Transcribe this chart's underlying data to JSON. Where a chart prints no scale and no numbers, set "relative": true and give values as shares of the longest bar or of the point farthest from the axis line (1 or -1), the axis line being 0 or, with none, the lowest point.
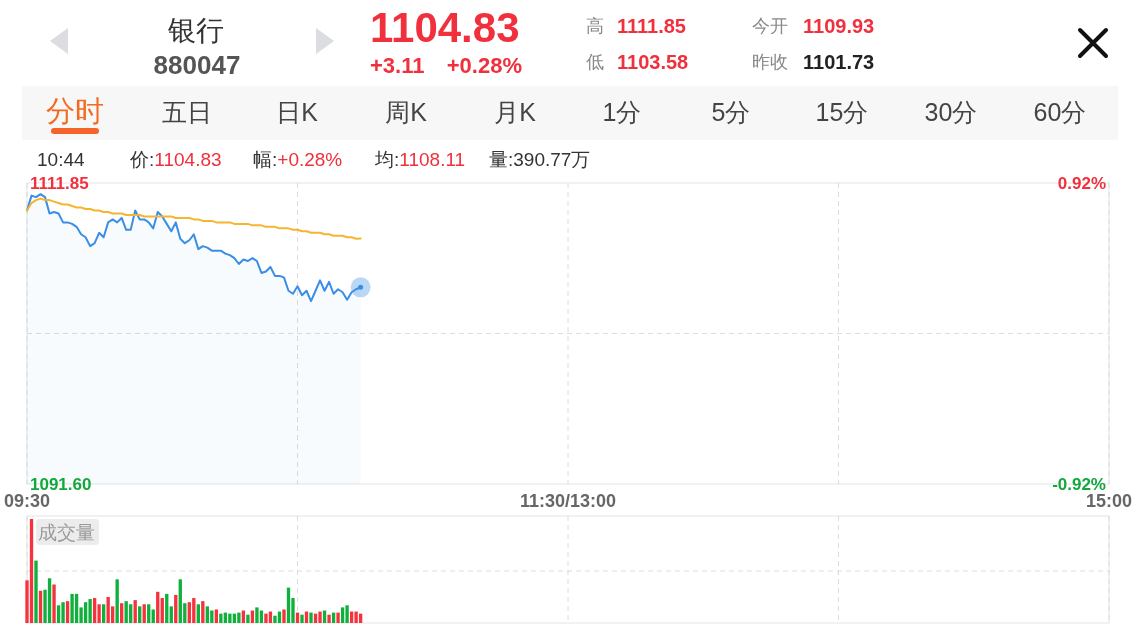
{
  "chart_data": [
    {
      "type": "other",
      "title": "银行",
      "subtitle": "880047",
      "annotations": [
        "1104.83",
        "+3.11",
        "+0.28%",
        "高",
        "1111.85",
        "今开",
        "1109.93",
        "低",
        "1103.58",
        "昨收",
        "1101.73",
        "分时",
        "五日",
        "日K",
        "周K",
        "月K",
        "1分",
        "5分",
        "15分",
        "30分",
        "60分",
        "10:44",
        "价:",
        "1104.83",
        "幅:",
        "+0.28%",
        "均:",
        "1108.11",
        "量:",
        "390.77万"
      ]
    },
    {
      "type": "line",
      "categories": [
        "09:30",
        null,
        null,
        null,
        null,
        null,
        null,
        null,
        null,
        null,
        null,
        null,
        null,
        null,
        null,
        null,
        null,
        null,
        null,
        null,
        null,
        null,
        null,
        null,
        null,
        null,
        null,
        null,
        null,
        null,
        null,
        null,
        null,
        null,
        null,
        null,
        null,
        null,
        null,
        null,
        null,
        null,
        null,
        null,
        null,
        null,
        null,
        null,
        null,
        null,
        null,
        null,
        null,
        null,
        null,
        null,
        null,
        null,
        null,
        null,
        null,
        null,
        null,
        null,
        null,
        null,
        null,
        null,
        null,
        null,
        null,
        null,
        null,
        null,
        null,
        null,
        null,
        null,
        null,
        null,
        null,
        null,
        null,
        null,
        null,
        null,
        null,
        null,
        null,
        null,
        null,
        null,
        null,
        null,
        null,
        null,
        null,
        null,
        null,
        null,
        null,
        null,
        null,
        null,
        null,
        null,
        null,
        null,
        null,
        null,
        null,
        null,
        null,
        null,
        null,
        null,
        null,
        null,
        null,
        null,
        "11:30/13:00",
        null,
        null,
        null,
        null,
        null,
        null,
        null,
        null,
        null,
        null,
        null,
        null,
        null,
        null,
        null,
        null,
        null,
        null,
        null,
        null,
        null,
        null,
        null,
        null,
        null,
        null,
        null,
        null,
        null,
        null,
        null,
        null,
        null,
        null,
        null,
        null,
        null,
        null,
        null,
        null,
        null,
        null,
        null,
        null,
        null,
        null,
        null,
        null,
        null,
        null,
        null,
        null,
        null,
        null,
        null,
        null,
        null,
        null,
        null,
        null,
        null,
        null,
        null,
        null,
        null,
        null,
        null,
        null,
        null,
        null,
        null,
        null,
        null,
        null,
        null,
        null,
        null,
        null,
        null,
        null,
        null,
        null,
        null,
        null,
        null,
        null,
        null,
        null,
        null,
        null,
        null,
        null,
        null,
        null,
        null,
        null,
        null,
        null,
        null,
        null,
        null,
        null,
        null,
        null,
        null,
        null,
        null,
        null,
        null,
        null,
        null,
        null,
        null,
        null,
        null,
        null,
        null,
        null,
        null,
        "15:00"
      ],
      "series": [
        {
          "type": "area",
          "color": "#3a8ee6",
          "values": [
            1110.0,
            1111.0,
            1110.9,
            1111.1,
            1110.9,
            1109.8,
            1109.9,
            1109.8,
            1109.2,
            1109.2,
            1109.1,
            1108.9,
            1108.4,
            1108.2,
            1107.6,
            1107.8,
            1108.5,
            1108.2,
            1109.2,
            1109.4,
            1109.2,
            1109.5,
            1108.7,
            1108.7,
            1110.0,
            1109.4,
            1109.4,
            1109.2,
            1108.8,
            1109.9,
            1109.6,
            1109.1,
            1108.6,
            1109.2,
            1108.1,
            1107.8,
            1108.0,
            1108.4,
            1107.4,
            1107.6,
            1107.5,
            1107.3,
            1107.3,
            1107.3,
            1107.1,
            1107.0,
            1106.8,
            1106.4,
            1106.7,
            1106.6,
            1106.8,
            1106.6,
            1105.8,
            1105.9,
            1106.2,
            1105.6,
            1105.6,
            1105.5,
            1104.6,
            1104.4,
            1104.9,
            1104.3,
            1104.6,
            1103.9,
            1104.6,
            1105.3,
            1104.6,
            1105.2,
            1104.4,
            1104.7,
            1104.5,
            1104.0,
            1104.5,
            1104.7,
            1104.83,
            null,
            null,
            null,
            null,
            null,
            null,
            null,
            null,
            null,
            null,
            null,
            null,
            null,
            null,
            null,
            null,
            null,
            null,
            null,
            null,
            null,
            null,
            null,
            null,
            null,
            null,
            null,
            null,
            null,
            null,
            null,
            null,
            null,
            null,
            null,
            null,
            null,
            null,
            null,
            null,
            null,
            null,
            null,
            null,
            null,
            null,
            null,
            null,
            null,
            null,
            null,
            null,
            null,
            null,
            null,
            null,
            null,
            null,
            null,
            null,
            null,
            null,
            null,
            null,
            null,
            null,
            null,
            null,
            null,
            null,
            null,
            null,
            null,
            null,
            null,
            null,
            null,
            null,
            null,
            null,
            null,
            null,
            null,
            null,
            null,
            null,
            null,
            null,
            null,
            null,
            null,
            null,
            null,
            null,
            null,
            null,
            null,
            null,
            null,
            null,
            null,
            null,
            null,
            null,
            null,
            null,
            null,
            null,
            null,
            null,
            null,
            null,
            null,
            null,
            null,
            null,
            null,
            null,
            null,
            null,
            null,
            null,
            null,
            null,
            null,
            null,
            null,
            null,
            null,
            null,
            null,
            null,
            null,
            null,
            null,
            null,
            null,
            null,
            null,
            null,
            null,
            null,
            null,
            null,
            null,
            null,
            null,
            null,
            null,
            null,
            null,
            null,
            null,
            null,
            null,
            null,
            null,
            null,
            null,
            null,
            null,
            null,
            null,
            null,
            null,
            null
          ]
        },
        {
          "color": "#f5b530",
          "values": [
            1110.0,
            1110.5,
            1110.7,
            1110.8,
            1110.7,
            1110.7,
            1110.6,
            1110.5,
            1110.4,
            1110.4,
            1110.3,
            1110.2,
            1110.2,
            1110.1,
            1110.1,
            1110.0,
            1110.0,
            1109.9,
            1109.9,
            1109.8,
            1109.8,
            1109.8,
            1109.7,
            1109.7,
            1109.7,
            1109.7,
            1109.6,
            1109.6,
            1109.6,
            1109.6,
            1109.6,
            1109.6,
            1109.6,
            1109.5,
            1109.5,
            1109.5,
            1109.5,
            1109.4,
            1109.4,
            1109.3,
            1109.3,
            1109.3,
            1109.2,
            1109.2,
            1109.2,
            1109.2,
            1109.1,
            1109.1,
            1109.1,
            1109.1,
            1109.0,
            1109.0,
            1109.0,
            1108.9,
            1108.9,
            1108.9,
            1108.8,
            1108.8,
            1108.8,
            1108.7,
            1108.7,
            1108.6,
            1108.6,
            1108.5,
            1108.5,
            1108.5,
            1108.4,
            1108.4,
            1108.3,
            1108.3,
            1108.3,
            1108.2,
            1108.2,
            1108.1,
            1108.11,
            null,
            null,
            null,
            null,
            null,
            null,
            null,
            null,
            null,
            null,
            null,
            null,
            null,
            null,
            null,
            null,
            null,
            null,
            null,
            null,
            null,
            null,
            null,
            null,
            null,
            null,
            null,
            null,
            null,
            null,
            null,
            null,
            null,
            null,
            null,
            null,
            null,
            null,
            null,
            null,
            null,
            null,
            null,
            null,
            null,
            null,
            null,
            null,
            null,
            null,
            null,
            null,
            null,
            null,
            null,
            null,
            null,
            null,
            null,
            null,
            null,
            null,
            null,
            null,
            null,
            null,
            null,
            null,
            null,
            null,
            null,
            null,
            null,
            null,
            null,
            null,
            null,
            null,
            null,
            null,
            null,
            null,
            null,
            null,
            null,
            null,
            null,
            null,
            null,
            null,
            null,
            null,
            null,
            null,
            null,
            null,
            null,
            null,
            null,
            null,
            null,
            null,
            null,
            null,
            null,
            null,
            null,
            null,
            null,
            null,
            null,
            null,
            null,
            null,
            null,
            null,
            null,
            null,
            null,
            null,
            null,
            null,
            null,
            null,
            null,
            null,
            null,
            null,
            null,
            null,
            null,
            null,
            null,
            null,
            null,
            null,
            null,
            null,
            null,
            null,
            null,
            null,
            null,
            null,
            null,
            null,
            null,
            null,
            null,
            null,
            null,
            null,
            null,
            null,
            null,
            null,
            null,
            null,
            null,
            null,
            null,
            null,
            null,
            null,
            null,
            null
          ]
        }
      ],
      "ylim": [
        1091.6,
        1111.85
      ],
      "yticks": [
        1111.85,
        {
          "value": 1091.6,
          "label": "1091.60"
        }
      ],
      "y2lim": [
        -0.92,
        0.92
      ],
      "y2ticks": [
        {
          "value": 0.92,
          "label": "0.92%"
        },
        {
          "value": -0.92,
          "label": "-0.92%"
        }
      ],
      "grid": "x",
      "ref_lines": [
        {
          "axis": "y",
          "value": 1101.73,
          "line_style": "dashed",
          "color": "#dcdcdc"
        }
      ]
    },
    {
      "type": "bar",
      "title": "成交量",
      "categories": [
        null,
        null,
        null,
        null,
        null,
        null,
        null,
        null,
        null,
        null,
        null,
        null,
        null,
        null,
        null,
        null,
        null,
        null,
        null,
        null,
        null,
        null,
        null,
        null,
        null,
        null,
        null,
        null,
        null,
        null,
        null,
        null,
        null,
        null,
        null,
        null,
        null,
        null,
        null,
        null,
        null,
        null,
        null,
        null,
        null,
        null,
        null,
        null,
        null,
        null,
        null,
        null,
        null,
        null,
        null,
        null,
        null,
        null,
        null,
        null,
        null,
        null,
        null,
        null,
        null,
        null,
        null,
        null,
        null,
        null,
        null,
        null,
        null,
        null,
        null,
        null,
        null,
        null,
        null,
        null,
        null,
        null,
        null,
        null,
        null,
        null,
        null,
        null,
        null,
        null,
        null,
        null,
        null,
        null,
        null,
        null,
        null,
        null,
        null,
        null,
        null,
        null,
        null,
        null,
        null,
        null,
        null,
        null,
        null,
        null,
        null,
        null,
        null,
        null,
        null,
        null,
        null,
        null,
        null,
        null,
        null,
        null,
        null,
        null,
        null,
        null,
        null,
        null,
        null,
        null,
        null,
        null,
        null,
        null,
        null,
        null,
        null,
        null,
        null,
        null,
        null,
        null,
        null,
        null,
        null,
        null,
        null,
        null,
        null,
        null,
        null,
        null,
        null,
        null,
        null,
        null,
        null,
        null,
        null,
        null,
        null,
        null,
        null,
        null,
        null,
        null,
        null,
        null,
        null,
        null,
        null,
        null,
        null,
        null,
        null,
        null,
        null,
        null,
        null,
        null,
        null,
        null,
        null,
        null,
        null,
        null,
        null,
        null,
        null,
        null,
        null,
        null,
        null,
        null,
        null,
        null,
        null,
        null,
        null,
        null,
        null,
        null,
        null,
        null,
        null,
        null,
        null,
        null,
        null,
        null,
        null,
        null,
        null,
        null,
        null,
        null,
        null,
        null,
        null,
        null,
        null,
        null,
        null,
        null,
        null,
        null,
        null,
        null,
        null,
        null,
        null,
        null,
        null,
        null,
        null,
        null,
        null,
        null,
        null,
        null,
        null
      ],
      "values": [
        0.41,
        1,
        0.6,
        0.31,
        0.32,
        0.43,
        0.37,
        0.17,
        0.2,
        0.21,
        0.28,
        0.28,
        0.15,
        0.2,
        0.23,
        0.24,
        0.18,
        0.18,
        0.25,
        0.16,
        0.42,
        0.19,
        0.21,
        0.18,
        0.22,
        0.16,
        0.18,
        0.18,
        0.13,
        0.3,
        0.24,
        0.28,
        0.16,
        0.27,
        0.42,
        0.19,
        0.2,
        0.24,
        0.18,
        0.21,
        0.16,
        0.12,
        0.13,
        0.09,
        0.1,
        0.09,
        0.09,
        0.1,
        0.12,
        0.08,
        0.12,
        0.15,
        0.12,
        0.09,
        0.11,
        0.07,
        0.11,
        0.13,
        0.34,
        0.24,
        0.1,
        0.08,
        0.11,
        0.1,
        0.09,
        0.11,
        0.12,
        0.08,
        0.1,
        0.1,
        0.15,
        0.17,
        0.11,
        0.11,
        0.09,
        null,
        null,
        null,
        null,
        null,
        null,
        null,
        null,
        null,
        null,
        null,
        null,
        null,
        null,
        null,
        null,
        null,
        null,
        null,
        null,
        null,
        null,
        null,
        null,
        null,
        null,
        null,
        null,
        null,
        null,
        null,
        null,
        null,
        null,
        null,
        null,
        null,
        null,
        null,
        null,
        null,
        null,
        null,
        null,
        null,
        null,
        null,
        null,
        null,
        null,
        null,
        null,
        null,
        null,
        null,
        null,
        null,
        null,
        null,
        null,
        null,
        null,
        null,
        null,
        null,
        null,
        null,
        null,
        null,
        null,
        null,
        null,
        null,
        null,
        null,
        null,
        null,
        null,
        null,
        null,
        null,
        null,
        null,
        null,
        null,
        null,
        null,
        null,
        null,
        null,
        null,
        null,
        null,
        null,
        null,
        null,
        null,
        null,
        null,
        null,
        null,
        null,
        null,
        null,
        null,
        null,
        null,
        null,
        null,
        null,
        null,
        null,
        null,
        null,
        null,
        null,
        null,
        null,
        null,
        null,
        null,
        null,
        null,
        null,
        null,
        null,
        null,
        null,
        null,
        null,
        null,
        null,
        null,
        null,
        null,
        null,
        null,
        null,
        null,
        null,
        null,
        null,
        null,
        null,
        null,
        null,
        null,
        null,
        null,
        null,
        null,
        null,
        null,
        null,
        null,
        null,
        null,
        null,
        null,
        null,
        null,
        null,
        null,
        null,
        null,
        null
      ],
      "colors": [
        "#f5333f",
        "#f5333f",
        "#10b03c",
        "#f5333f",
        "#10b03c",
        "#10b03c",
        "#f5333f",
        "#10b03c",
        "#10b03c",
        "#f5333f",
        "#10b03c",
        "#10b03c",
        "#10b03c",
        "#10b03c",
        "#10b03c",
        "#f5333f",
        "#f5333f",
        "#10b03c",
        "#f5333f",
        "#f5333f",
        "#10b03c",
        "#f5333f",
        "#10b03c",
        "#10b03c",
        "#f5333f",
        "#10b03c",
        "#f5333f",
        "#10b03c",
        "#10b03c",
        "#f5333f",
        "#f5333f",
        "#10b03c",
        "#10b03c",
        "#f5333f",
        "#10b03c",
        "#10b03c",
        "#f5333f",
        "#f5333f",
        "#10b03c",
        "#f5333f",
        "#10b03c",
        "#10b03c",
        "#f5333f",
        "#10b03c",
        "#10b03c",
        "#10b03c",
        "#10b03c",
        "#10b03c",
        "#f5333f",
        "#10b03c",
        "#f5333f",
        "#10b03c",
        "#10b03c",
        "#f5333f",
        "#f5333f",
        "#10b03c",
        "#10b03c",
        "#f5333f",
        "#10b03c",
        "#10b03c",
        "#f5333f",
        "#10b03c",
        "#f5333f",
        "#10b03c",
        "#f5333f",
        "#f5333f",
        "#10b03c",
        "#f5333f",
        "#10b03c",
        "#f5333f",
        "#10b03c",
        "#10b03c",
        "#f5333f",
        "#f5333f",
        "#f5333f",
        null,
        null,
        null,
        null,
        null,
        null,
        null,
        null,
        null,
        null,
        null,
        null,
        null,
        null,
        null,
        null,
        null,
        null,
        null,
        null,
        null,
        null,
        null,
        null,
        null,
        null,
        null,
        null,
        null,
        null,
        null,
        null,
        null,
        null,
        null,
        null,
        null,
        null,
        null,
        null,
        null,
        null,
        null,
        null,
        null,
        null,
        null,
        null,
        null,
        null,
        null,
        null,
        null,
        null,
        null,
        null,
        null,
        null,
        null,
        null,
        null,
        null,
        null,
        null,
        null,
        null,
        null,
        null,
        null,
        null,
        null,
        null,
        null,
        null,
        null,
        null,
        null,
        null,
        null,
        null,
        null,
        null,
        null,
        null,
        null,
        null,
        null,
        null,
        null,
        null,
        null,
        null,
        null,
        null,
        null,
        null,
        null,
        null,
        null,
        null,
        null,
        null,
        null,
        null,
        null,
        null,
        null,
        null,
        null,
        null,
        null,
        null,
        null,
        null,
        null,
        null,
        null,
        null,
        null,
        null,
        null,
        null,
        null,
        null,
        null,
        null,
        null,
        null,
        null,
        null,
        null,
        null,
        null,
        null,
        null,
        null,
        null,
        null,
        null,
        null,
        null,
        null,
        null,
        null,
        null,
        null,
        null,
        null,
        null,
        null,
        null,
        null,
        null,
        null,
        null,
        null,
        null,
        null,
        null,
        null,
        null,
        null,
        null,
        null,
        null,
        null
      ],
      "relative": true,
      "grid": "x",
      "ref_lines": [
        {
          "axis": "y",
          "value": 0.5,
          "line_style": "dashed",
          "color": "#dcdcdc"
        }
      ]
    }
  ]
}
